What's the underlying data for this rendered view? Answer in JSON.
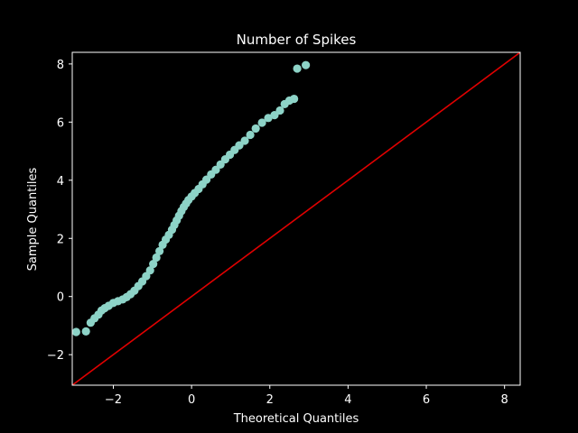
{
  "chart_data": {
    "type": "scatter",
    "title": "Number of Spikes",
    "xlabel": "Theoretical Quantiles",
    "ylabel": "Sample Quantiles",
    "xlim": [
      -3.05,
      8.4
    ],
    "ylim": [
      -3.05,
      8.4
    ],
    "xticks": [
      -2,
      0,
      2,
      4,
      6,
      8
    ],
    "yticks": [
      -2,
      0,
      2,
      4,
      6,
      8
    ],
    "xtick_labels": [
      "−2",
      "0",
      "2",
      "4",
      "6",
      "8"
    ],
    "ytick_labels": [
      "−2",
      "0",
      "2",
      "4",
      "6",
      "8"
    ],
    "grid": false,
    "colors": {
      "background": "#000000",
      "axes": "#ffffff",
      "points": "#8dd3c7",
      "reference_line": "#e00000"
    },
    "reference_line": {
      "type": "y=x"
    },
    "series": [
      {
        "kind": "scatter",
        "x": [
          -2.95,
          -2.7,
          -2.58,
          -2.48,
          -2.38,
          -2.3,
          -2.22,
          -2.12,
          -2.0,
          -1.88,
          -1.76,
          -1.66,
          -1.56,
          -1.46,
          -1.36,
          -1.26,
          -1.16,
          -1.06,
          -0.98,
          -0.9,
          -0.82,
          -0.74,
          -0.66,
          -0.58,
          -0.5,
          -0.44,
          -0.38,
          -0.32,
          -0.26,
          -0.2,
          -0.14,
          -0.08,
          0.0,
          0.08,
          0.18,
          0.28,
          0.38,
          0.5,
          0.62,
          0.74,
          0.86,
          0.98,
          1.1,
          1.22,
          1.36,
          1.5,
          1.64,
          1.8,
          1.96,
          2.12,
          2.26,
          2.38,
          2.5,
          2.62,
          2.7,
          2.92
        ],
        "y": [
          -1.22,
          -1.2,
          -0.9,
          -0.75,
          -0.62,
          -0.48,
          -0.4,
          -0.32,
          -0.22,
          -0.16,
          -0.1,
          -0.02,
          0.08,
          0.2,
          0.36,
          0.52,
          0.7,
          0.9,
          1.12,
          1.34,
          1.56,
          1.78,
          1.96,
          2.12,
          2.3,
          2.46,
          2.62,
          2.78,
          2.94,
          3.08,
          3.2,
          3.32,
          3.44,
          3.56,
          3.7,
          3.86,
          4.02,
          4.2,
          4.36,
          4.54,
          4.72,
          4.88,
          5.04,
          5.2,
          5.36,
          5.56,
          5.78,
          5.98,
          6.14,
          6.24,
          6.4,
          6.62,
          6.74,
          6.8,
          7.84,
          7.96
        ]
      }
    ]
  }
}
